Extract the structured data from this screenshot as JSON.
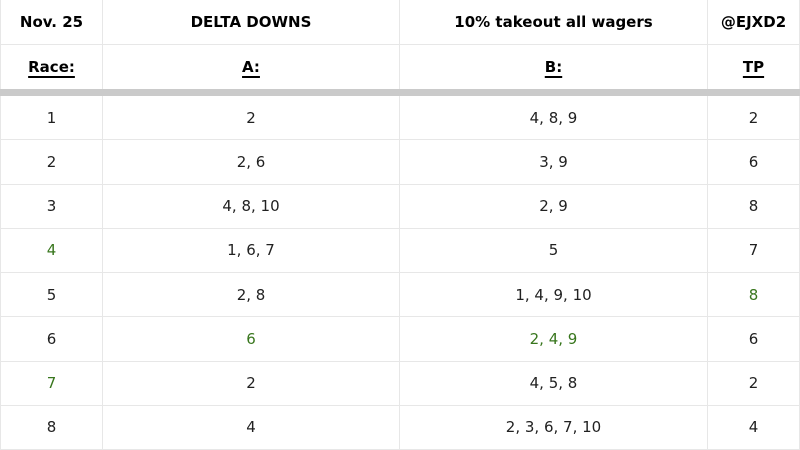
{
  "colors": {
    "highlight_green": "#38761d",
    "text_dark": "#212121",
    "header_black": "#000000",
    "divider_band": "#cacaca",
    "grid_line": "#e7e7e7",
    "background": "#ffffff"
  },
  "header": {
    "date": "Nov. 25",
    "track": "DELTA DOWNS",
    "note": "10% takeout all wagers",
    "handle": "@EJXD2"
  },
  "subheader": {
    "race": "Race:",
    "a": "A:",
    "b": "B:",
    "tp": "TP"
  },
  "rows": [
    {
      "race": {
        "text": "1",
        "color": "dark"
      },
      "a": {
        "text": "2",
        "color": "dark"
      },
      "b": {
        "text": "4, 8, 9",
        "color": "dark"
      },
      "tp": {
        "text": "2",
        "color": "dark"
      }
    },
    {
      "race": {
        "text": "2",
        "color": "dark"
      },
      "a": {
        "text": "2, 6",
        "color": "dark"
      },
      "b": {
        "text": "3, 9",
        "color": "dark"
      },
      "tp": {
        "text": "6",
        "color": "dark"
      }
    },
    {
      "race": {
        "text": "3",
        "color": "dark"
      },
      "a": {
        "text": "4, 8, 10",
        "color": "dark"
      },
      "b": {
        "text": "2, 9",
        "color": "dark"
      },
      "tp": {
        "text": "8",
        "color": "dark"
      }
    },
    {
      "race": {
        "text": "4",
        "color": "green"
      },
      "a": {
        "text": "1, 6, 7",
        "color": "dark"
      },
      "b": {
        "text": "5",
        "color": "dark"
      },
      "tp": {
        "text": "7",
        "color": "dark"
      }
    },
    {
      "race": {
        "text": "5",
        "color": "dark"
      },
      "a": {
        "text": "2, 8",
        "color": "dark"
      },
      "b": {
        "text": "1, 4, 9, 10",
        "color": "dark"
      },
      "tp": {
        "text": "8",
        "color": "green"
      }
    },
    {
      "race": {
        "text": "6",
        "color": "dark"
      },
      "a": {
        "text": "6",
        "color": "green"
      },
      "b": {
        "text": "2, 4, 9",
        "color": "green"
      },
      "tp": {
        "text": "6",
        "color": "dark"
      }
    },
    {
      "race": {
        "text": "7",
        "color": "green"
      },
      "a": {
        "text": "2",
        "color": "dark"
      },
      "b": {
        "text": "4, 5, 8",
        "color": "dark"
      },
      "tp": {
        "text": "2",
        "color": "dark"
      }
    },
    {
      "race": {
        "text": "8",
        "color": "dark"
      },
      "a": {
        "text": "4",
        "color": "dark"
      },
      "b": {
        "text": "2, 3, 6, 7, 10",
        "color": "dark"
      },
      "tp": {
        "text": "4",
        "color": "dark"
      }
    }
  ]
}
